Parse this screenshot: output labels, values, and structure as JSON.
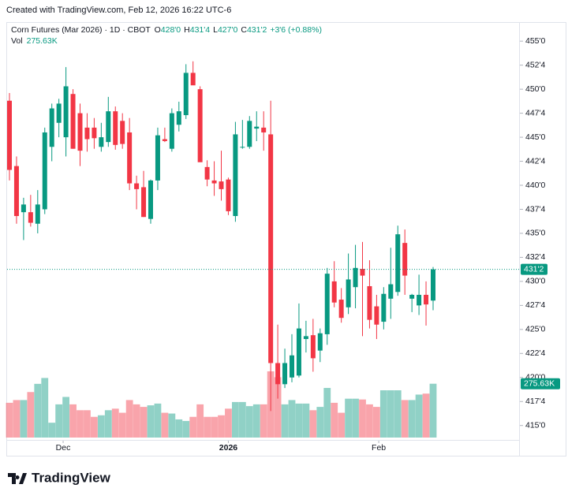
{
  "chart_data": {
    "type": "candlestick",
    "watermark": "Created with TradingView.com, Feb 12, 2026 16:22 UTC-6",
    "title": "Corn Futures (Mar 2026) · 1D · CBOT",
    "ohlc_header": [
      {
        "key": "O",
        "value": "428'0"
      },
      {
        "key": "H",
        "value": "431'4"
      },
      {
        "key": "L",
        "value": "427'0"
      },
      {
        "key": "C",
        "value": "431'2"
      }
    ],
    "change": "+3'6 (+0.88%)",
    "volume_title": "Vol",
    "volume_label": "275.63K",
    "last_price_label": "431'2",
    "logo": "TradingView",
    "up_color": "#089981",
    "down_color": "#f23645",
    "ylim": [
      413.5,
      456
    ],
    "yticks": [
      {
        "value": 415,
        "label": "415'0"
      },
      {
        "value": 417.5,
        "label": "417'4"
      },
      {
        "value": 420,
        "label": "420'0"
      },
      {
        "value": 422.5,
        "label": "422'4"
      },
      {
        "value": 425,
        "label": "425'0"
      },
      {
        "value": 427.5,
        "label": "427'4"
      },
      {
        "value": 430,
        "label": "430'0"
      },
      {
        "value": 432.5,
        "label": "432'4"
      },
      {
        "value": 435,
        "label": "435'0"
      },
      {
        "value": 437.5,
        "label": "437'4"
      },
      {
        "value": 440,
        "label": "440'0"
      },
      {
        "value": 442.5,
        "label": "442'4"
      },
      {
        "value": 445,
        "label": "445'0"
      },
      {
        "value": 447.5,
        "label": "447'4"
      },
      {
        "value": 450,
        "label": "450'0"
      },
      {
        "value": 452.5,
        "label": "452'4"
      },
      {
        "value": 455,
        "label": "455'0"
      }
    ],
    "xticks": [
      {
        "value": 7.6,
        "label": "Dec"
      },
      {
        "value": 31,
        "label": "2026"
      },
      {
        "value": 52.3,
        "label": "Feb"
      }
    ],
    "open": [
      448.8,
      442,
      437.2,
      437.2,
      436,
      437.5,
      444,
      446.5,
      445,
      449.5,
      447.5,
      446,
      446,
      444,
      444.5,
      447.7,
      446.7,
      445.5,
      440.2,
      439.8,
      436.5,
      440.5,
      444.8,
      443.8,
      446.3,
      447.3,
      451.7,
      450,
      441.9,
      440.5,
      440.4,
      440.6,
      436.8,
      444,
      444,
      445.9,
      446,
      445.3,
      421.5,
      419.3,
      420,
      420.2,
      424,
      424.4,
      422.8,
      424.5,
      430,
      428.1,
      427.3,
      429.4,
      431.3,
      429.5,
      427.4,
      425.8,
      428.2,
      428.9,
      434,
      428.2,
      427.5,
      428.6,
      428
    ],
    "high": [
      449.6,
      443,
      438.7,
      439,
      439.5,
      446,
      448.5,
      449,
      452.3,
      450,
      448.5,
      447.5,
      447,
      446.5,
      449.2,
      448.2,
      447.5,
      447,
      441,
      441.5,
      440.6,
      446,
      446,
      448,
      448.7,
      452.6,
      452.9,
      450.3,
      442.6,
      442.5,
      443.6,
      440.8,
      446.6,
      446.8,
      447.2,
      447.7,
      447.7,
      448.8,
      425.5,
      423,
      424.5,
      427.7,
      425.9,
      426.1,
      425.1,
      431.4,
      432.1,
      429.3,
      432.9,
      433.8,
      434.1,
      432.2,
      428.6,
      429.4,
      433.5,
      435.8,
      435.4,
      428.7,
      430.7,
      430,
      431.5
    ],
    "low": [
      440.5,
      436,
      434.3,
      435.7,
      435,
      437,
      442.5,
      445,
      443,
      443.8,
      442,
      443.5,
      443.8,
      443.5,
      444,
      443.7,
      443.8,
      439.5,
      437.5,
      436.7,
      436,
      439.5,
      444.5,
      443.5,
      445.6,
      446.9,
      450.5,
      442.5,
      439.9,
      438.9,
      438.4,
      436.9,
      436.2,
      443.8,
      443.8,
      444.6,
      443.6,
      416.5,
      417.8,
      418.9,
      419.5,
      420,
      422.6,
      420.6,
      421.6,
      423.4,
      427.3,
      425.7,
      426.6,
      427.2,
      424.3,
      425.1,
      424,
      425,
      426.1,
      428.5,
      428.6,
      426.8,
      426.5,
      425.4,
      427
    ],
    "close": [
      441.6,
      436.8,
      438,
      436.1,
      438,
      445.5,
      448,
      448.5,
      450.3,
      443.8,
      443.6,
      444.8,
      444.9,
      445,
      447.7,
      444.2,
      444.3,
      440.2,
      439.6,
      436.7,
      440.5,
      445.2,
      444.6,
      447.5,
      447.7,
      451.7,
      450.4,
      442.4,
      440.6,
      440.2,
      439.6,
      437.3,
      445.3,
      444,
      446.7,
      446.1,
      445.5,
      421.5,
      419.3,
      421.5,
      422.3,
      425.1,
      424.3,
      422,
      424.6,
      430.8,
      427.8,
      426.2,
      430.2,
      431.4,
      430.6,
      426,
      425.5,
      428.7,
      429.7,
      434.9,
      430.6,
      428.6,
      428.6,
      427.6,
      431.25
    ],
    "volume": [
      178000,
      192000,
      192000,
      233000,
      275000,
      305000,
      76000,
      170000,
      208000,
      170000,
      140000,
      140000,
      106000,
      114000,
      140000,
      148000,
      127000,
      192000,
      170000,
      157000,
      165000,
      174000,
      127000,
      123000,
      93000,
      85000,
      106000,
      170000,
      106000,
      106000,
      114000,
      148000,
      182000,
      182000,
      161000,
      170000,
      170000,
      339000,
      309000,
      170000,
      192000,
      174000,
      174000,
      140000,
      157000,
      254000,
      178000,
      127000,
      199000,
      199000,
      195000,
      170000,
      157000,
      242000,
      242000,
      242000,
      192000,
      192000,
      220000,
      225000,
      275630
    ]
  }
}
